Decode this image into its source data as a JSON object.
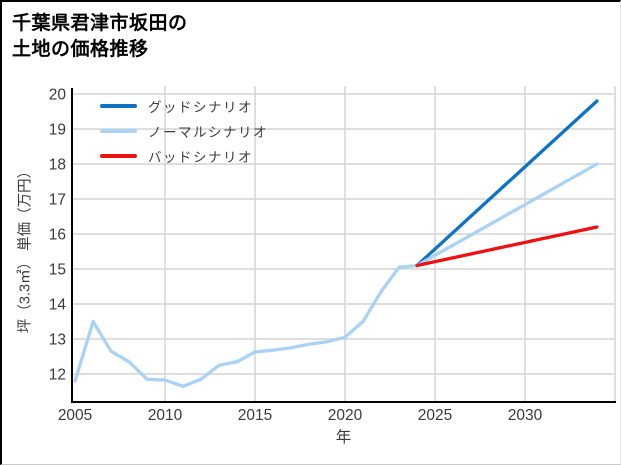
{
  "title": {
    "line1": "千葉県君津市坂田の",
    "line2": "土地の価格推移"
  },
  "chart_data": {
    "type": "line",
    "title": "千葉県君津市坂田の土地の価格推移",
    "xlabel": "年",
    "ylabel": "坪（3.3㎡） 単価（万円）",
    "x_range": [
      2004.83,
      2035.0
    ],
    "y_range": [
      11.2,
      20.23
    ],
    "x_tick_labels": [
      2005,
      2010,
      2015,
      2020,
      2025,
      2030
    ],
    "x_gridlines": [
      2010,
      2015,
      2020,
      2025,
      2030,
      2035
    ],
    "y_ticks": [
      12,
      13,
      14,
      15,
      16,
      17,
      18,
      19,
      20
    ],
    "grid": true,
    "legend_position": "top-left",
    "series": [
      {
        "name": "グッドシナリオ",
        "color": "#0e72c6",
        "x": [
          2024,
          2034
        ],
        "y": [
          15.1,
          19.8
        ]
      },
      {
        "name": "ノーマルシナリオ",
        "color": "#a9d2f5",
        "x": [
          2005,
          2006,
          2007,
          2008,
          2009,
          2010,
          2011,
          2012,
          2013,
          2014,
          2015,
          2016,
          2017,
          2018,
          2019,
          2020,
          2021,
          2022,
          2023,
          2024,
          2034
        ],
        "y": [
          11.8,
          13.5,
          12.65,
          12.35,
          11.85,
          11.83,
          11.65,
          11.85,
          12.25,
          12.35,
          12.63,
          12.68,
          12.75,
          12.85,
          12.92,
          13.05,
          13.5,
          14.35,
          15.05,
          15.1,
          18.0
        ]
      },
      {
        "name": "バッドシナリオ",
        "color": "#ee1111",
        "x": [
          2024,
          2034
        ],
        "y": [
          15.1,
          16.2
        ]
      }
    ],
    "style": {
      "grid_color": "#d4d4d4",
      "spine_color": "#000000",
      "tick_text_color": "#3a3a3a",
      "line_width": 3.3
    }
  }
}
